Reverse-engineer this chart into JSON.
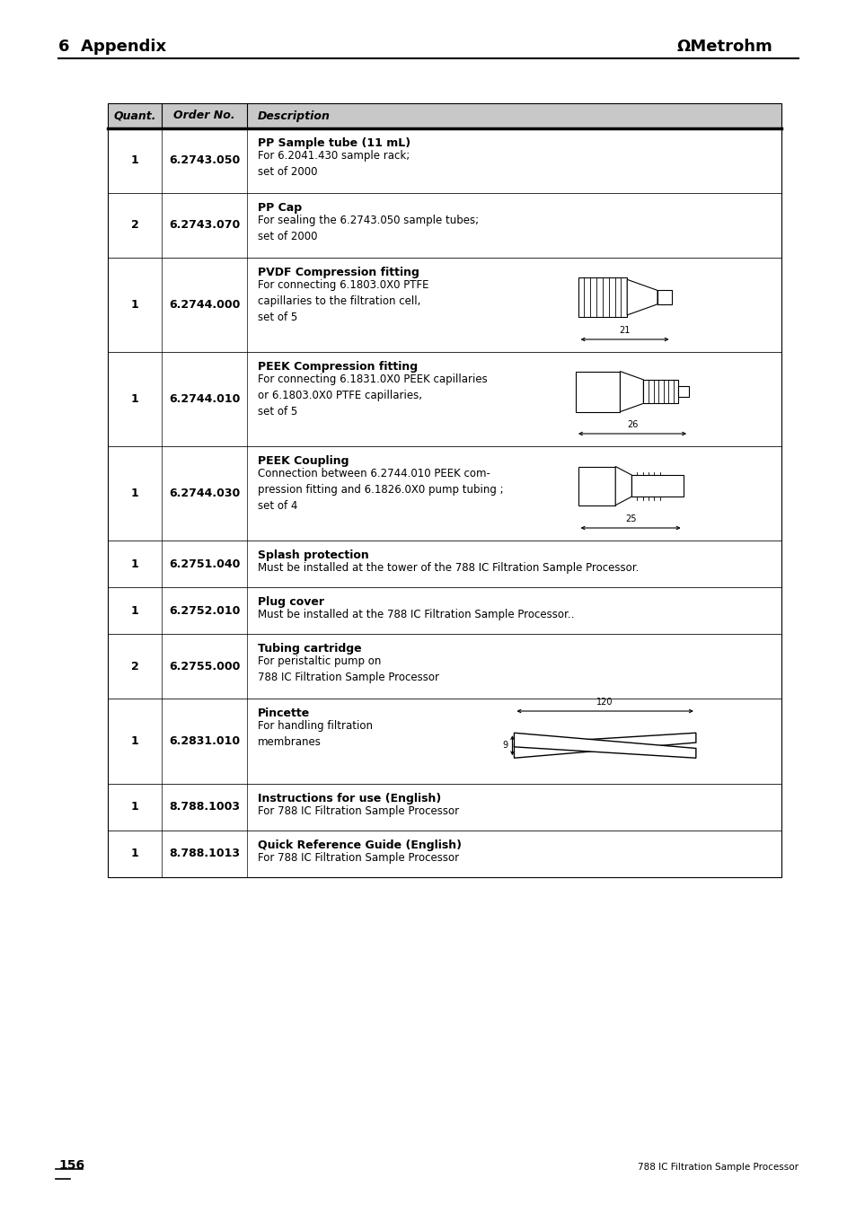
{
  "page_number": "156",
  "footer_text": "788 IC Filtration Sample Processor",
  "header_left": "6  Appendix",
  "header_right": "ΩMetrohm",
  "bg_color": "#ffffff",
  "table_header_bg": "#c8c8c8",
  "table_header_text": [
    "Quant.",
    "Order No.",
    "Description"
  ],
  "rows": [
    {
      "quant": "1",
      "order": "6.2743.050",
      "title": "PP Sample tube (11 mL)",
      "desc": "For 6.2041.430 sample rack;\nset of 2000",
      "has_image": false
    },
    {
      "quant": "2",
      "order": "6.2743.070",
      "title": "PP Cap",
      "desc": "For sealing the 6.2743.050 sample tubes;\nset of 2000",
      "has_image": false
    },
    {
      "quant": "1",
      "order": "6.2744.000",
      "title": "PVDF Compression fitting",
      "desc": "For connecting 6.1803.0X0 PTFE\ncapillaries to the filtration cell,\nset of 5",
      "has_image": true,
      "image_type": "pvdf_fitting",
      "dim_label": "21"
    },
    {
      "quant": "1",
      "order": "6.2744.010",
      "title": "PEEK Compression fitting",
      "desc": "For connecting 6.1831.0X0 PEEK capillaries\nor 6.1803.0X0 PTFE capillaries,\nset of 5",
      "has_image": true,
      "image_type": "peek_compression",
      "dim_label": "26"
    },
    {
      "quant": "1",
      "order": "6.2744.030",
      "title": "PEEK Coupling",
      "desc": "Connection between 6.2744.010 PEEK com-\npression fitting and 6.1826.0X0 pump tubing ;\nset of 4",
      "has_image": true,
      "image_type": "peek_coupling",
      "dim_label": "25"
    },
    {
      "quant": "1",
      "order": "6.2751.040",
      "title": "Splash protection",
      "desc": "Must be installed at the tower of the 788 IC Filtration Sample Processor.",
      "has_image": false
    },
    {
      "quant": "1",
      "order": "6.2752.010",
      "title": "Plug cover",
      "desc": "Must be installed at the 788 IC Filtration Sample Processor..",
      "has_image": false
    },
    {
      "quant": "2",
      "order": "6.2755.000",
      "title": "Tubing cartridge",
      "desc": "For peristaltic pump on\n788 IC Filtration Sample Processor",
      "has_image": false
    },
    {
      "quant": "1",
      "order": "6.2831.010",
      "title": "Pincette",
      "desc": "For handling filtration\nmembranes",
      "has_image": true,
      "image_type": "pincette",
      "dim_label_top": "120",
      "dim_label_left": "9"
    },
    {
      "quant": "1",
      "order": "8.788.1003",
      "title": "Instructions for use (English)",
      "desc": "For 788 IC Filtration Sample Processor",
      "has_image": false
    },
    {
      "quant": "1",
      "order": "8.788.1013",
      "title": "Quick Reference Guide (English)",
      "desc": "For 788 IC Filtration Sample Processor",
      "has_image": false
    }
  ]
}
